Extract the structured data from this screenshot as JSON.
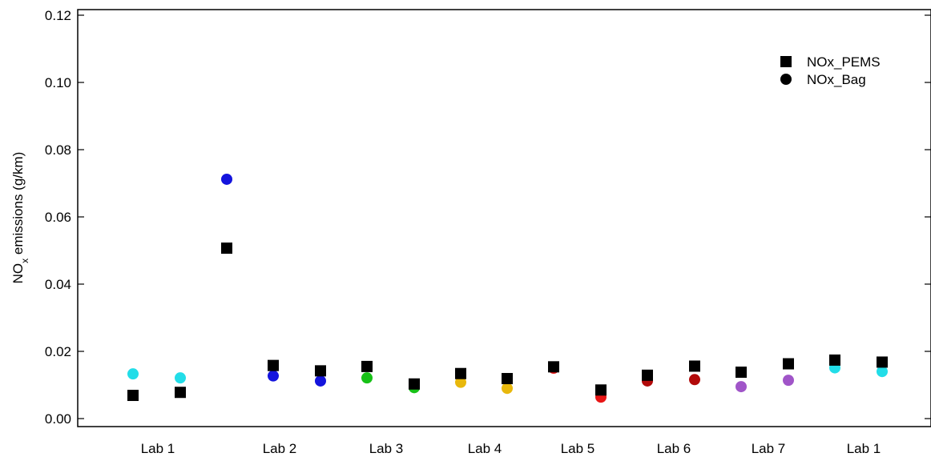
{
  "chart_data": {
    "type": "scatter",
    "title": "",
    "xlabel": "",
    "ylabel": {
      "main": "NO",
      "sub": "x",
      "rest": " emissions (g/km)"
    },
    "ylim": [
      0.0,
      0.12
    ],
    "yticks": [
      "0.00",
      "0.02",
      "0.04",
      "0.06",
      "0.08",
      "0.10",
      "0.12"
    ],
    "ytick_values": [
      0.0,
      0.02,
      0.04,
      0.06,
      0.08,
      0.1,
      0.12
    ],
    "categories": [
      "Lab 1",
      "Lab 2",
      "Lab 3",
      "Lab 4",
      "Lab 5",
      "Lab 6",
      "Lab 7",
      "Lab 1"
    ],
    "grid": false,
    "legend_position": "top-right",
    "lab_colors": {
      "Lab 1": "#22dde8",
      "Lab 2": "#1414dd",
      "Lab 3": "#17c117",
      "Lab 4": "#e8b80c",
      "Lab 5": "#e81515",
      "Lab 6": "#b20a0a",
      "Lab 7": "#a055c8"
    },
    "series": [
      {
        "name": "NOx_PEMS",
        "marker": "square",
        "points": [
          {
            "category": "Lab 1",
            "value": 0.0069,
            "color": "#000000"
          },
          {
            "category": "Lab 1",
            "value": 0.0078,
            "color": "#000000"
          },
          {
            "category": "Lab 2",
            "value": 0.0507,
            "color": "#000000"
          },
          {
            "category": "Lab 2",
            "value": 0.0158,
            "color": "#000000"
          },
          {
            "category": "Lab 2",
            "value": 0.0142,
            "color": "#000000"
          },
          {
            "category": "Lab 3",
            "value": 0.0155,
            "color": "#000000"
          },
          {
            "category": "Lab 3",
            "value": 0.0103,
            "color": "#000000"
          },
          {
            "category": "Lab 4",
            "value": 0.0134,
            "color": "#000000"
          },
          {
            "category": "Lab 4",
            "value": 0.0119,
            "color": "#000000"
          },
          {
            "category": "Lab 5",
            "value": 0.0154,
            "color": "#000000"
          },
          {
            "category": "Lab 5",
            "value": 0.0085,
            "color": "#000000"
          },
          {
            "category": "Lab 6",
            "value": 0.0129,
            "color": "#000000"
          },
          {
            "category": "Lab 6",
            "value": 0.0156,
            "color": "#000000"
          },
          {
            "category": "Lab 7",
            "value": 0.0138,
            "color": "#000000"
          },
          {
            "category": "Lab 7",
            "value": 0.0163,
            "color": "#000000"
          },
          {
            "category": "Lab 1",
            "value": 0.0174,
            "color": "#000000"
          },
          {
            "category": "Lab 1",
            "value": 0.0168,
            "color": "#000000"
          }
        ]
      },
      {
        "name": "NOx_Bag",
        "marker": "circle",
        "points": [
          {
            "category": "Lab 1",
            "value": 0.0133,
            "color": "#22dde8"
          },
          {
            "category": "Lab 1",
            "value": 0.0121,
            "color": "#22dde8"
          },
          {
            "category": "Lab 2",
            "value": 0.0712,
            "color": "#1414dd"
          },
          {
            "category": "Lab 2",
            "value": 0.0127,
            "color": "#1414dd"
          },
          {
            "category": "Lab 2",
            "value": 0.0112,
            "color": "#1414dd"
          },
          {
            "category": "Lab 3",
            "value": 0.0121,
            "color": "#17c117"
          },
          {
            "category": "Lab 3",
            "value": 0.0092,
            "color": "#17c117"
          },
          {
            "category": "Lab 4",
            "value": 0.0108,
            "color": "#e8b80c"
          },
          {
            "category": "Lab 4",
            "value": 0.009,
            "color": "#e8b80c"
          },
          {
            "category": "Lab 5",
            "value": 0.015,
            "color": "#e81515"
          },
          {
            "category": "Lab 5",
            "value": 0.0064,
            "color": "#e81515"
          },
          {
            "category": "Lab 6",
            "value": 0.0112,
            "color": "#b20a0a"
          },
          {
            "category": "Lab 6",
            "value": 0.0116,
            "color": "#b20a0a"
          },
          {
            "category": "Lab 7",
            "value": 0.0095,
            "color": "#a055c8"
          },
          {
            "category": "Lab 7",
            "value": 0.0114,
            "color": "#a055c8"
          },
          {
            "category": "Lab 1",
            "value": 0.0151,
            "color": "#22dde8"
          },
          {
            "category": "Lab 1",
            "value": 0.014,
            "color": "#22dde8"
          }
        ]
      }
    ]
  }
}
